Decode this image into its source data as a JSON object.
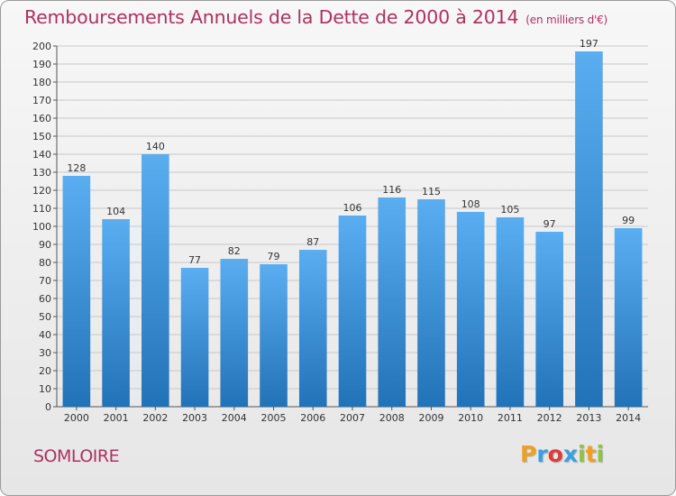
{
  "chart_data": {
    "type": "bar",
    "title": "Remboursements Annuels de la Dette de 2000 à 2014",
    "unit_note": "(en milliers d'€)",
    "categories": [
      "2000",
      "2001",
      "2002",
      "2003",
      "2004",
      "2005",
      "2006",
      "2007",
      "2008",
      "2009",
      "2010",
      "2011",
      "2012",
      "2013",
      "2014"
    ],
    "values": [
      128,
      104,
      140,
      77,
      82,
      79,
      87,
      106,
      116,
      115,
      108,
      105,
      97,
      197,
      99
    ],
    "ylim": [
      0,
      200
    ],
    "ytick_step": 10,
    "grid": true,
    "bar_color_top": "#5aaef0",
    "bar_color_bottom": "#2272b8"
  },
  "footer": {
    "commune": "SOMLOIRE",
    "logo_letters": [
      "P",
      "r",
      "o",
      "x",
      "i",
      "t",
      "i"
    ]
  }
}
